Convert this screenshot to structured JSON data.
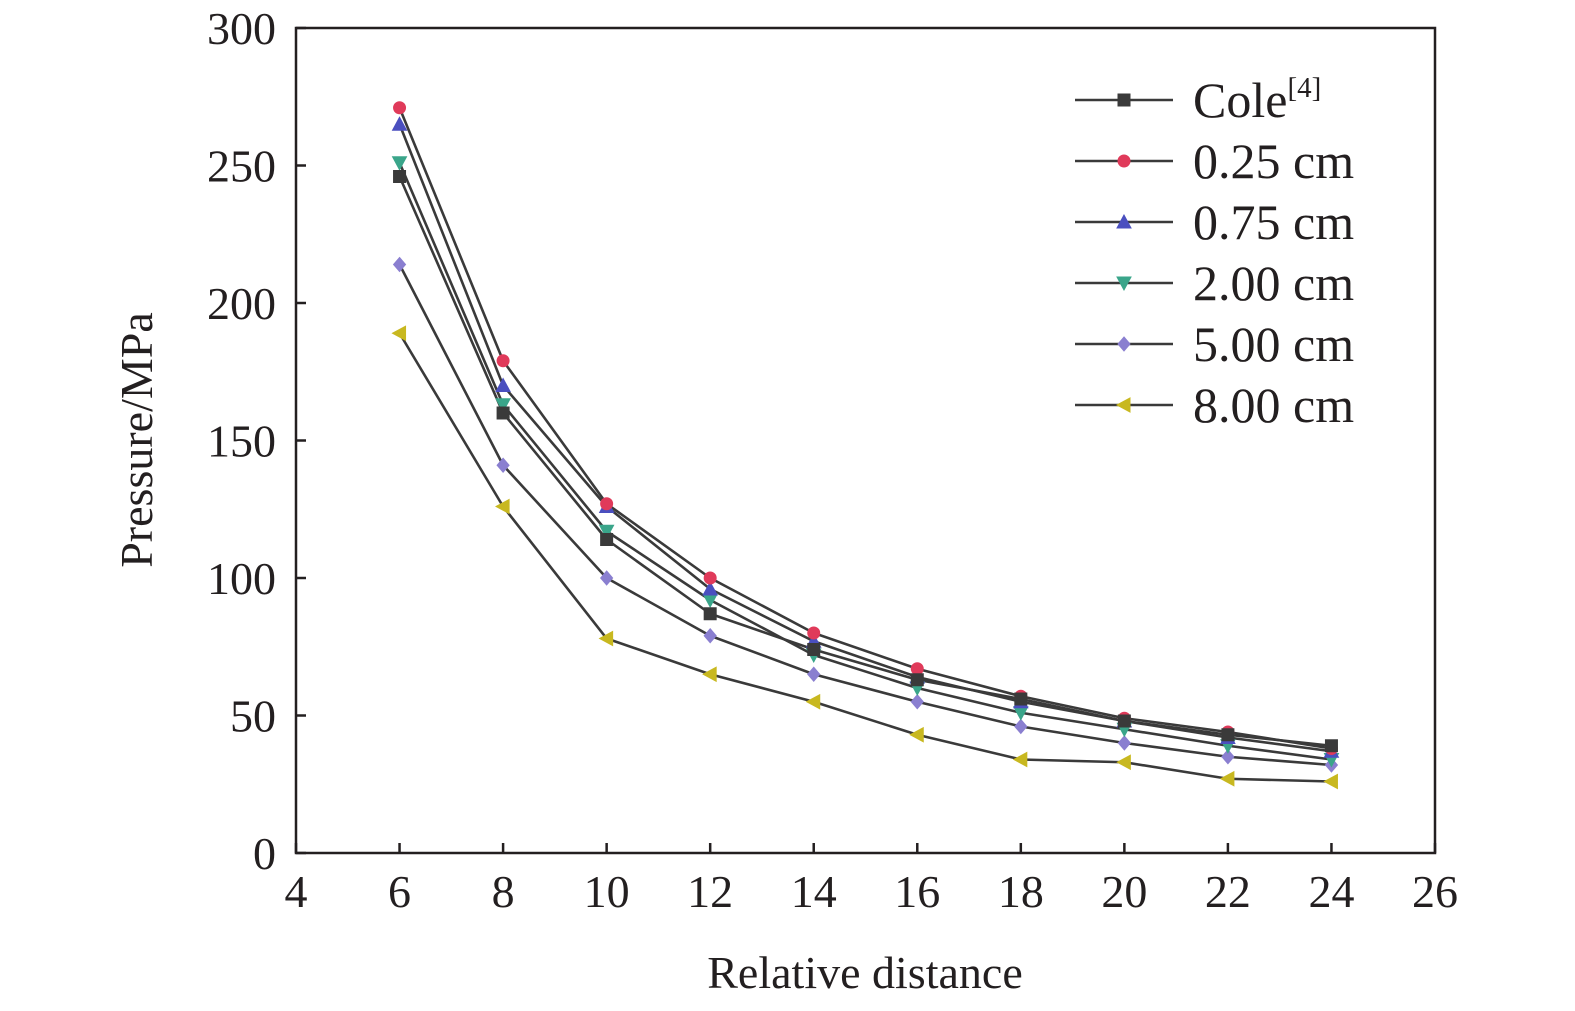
{
  "chart_data": {
    "type": "line",
    "title": "",
    "xlabel": "Relative distance",
    "ylabel": "Pressure/MPa",
    "xlim": [
      4,
      26
    ],
    "ylim": [
      0,
      300
    ],
    "xticks": [
      4,
      6,
      8,
      10,
      12,
      14,
      16,
      18,
      20,
      22,
      24,
      26
    ],
    "yticks": [
      0,
      50,
      100,
      150,
      200,
      250,
      300
    ],
    "grid": false,
    "legend_position": "top-right",
    "x": [
      6,
      8,
      10,
      12,
      14,
      16,
      18,
      20,
      22,
      24
    ],
    "series": [
      {
        "name": "Cole",
        "name_superscript": "[4]",
        "color": "#3a3a3a",
        "marker": "square",
        "values": [
          246,
          160,
          114,
          87,
          74,
          63,
          56,
          48,
          43,
          39
        ]
      },
      {
        "name": "0.25 cm",
        "color": "#e03a5a",
        "marker": "circle",
        "values": [
          271,
          179,
          127,
          100,
          80,
          67,
          57,
          49,
          44,
          38
        ]
      },
      {
        "name": "0.75 cm",
        "color": "#4a4fbf",
        "marker": "triangle-up",
        "values": [
          265,
          170,
          126,
          96,
          77,
          64,
          55,
          48,
          42,
          37
        ]
      },
      {
        "name": "2.00 cm",
        "color": "#3aa58a",
        "marker": "triangle-down",
        "values": [
          251,
          163,
          117,
          92,
          72,
          60,
          51,
          45,
          39,
          34
        ]
      },
      {
        "name": "5.00 cm",
        "color": "#8a7fd0",
        "marker": "diamond",
        "values": [
          214,
          141,
          100,
          79,
          65,
          55,
          46,
          40,
          35,
          32
        ]
      },
      {
        "name": "8.00 cm",
        "color": "#c8b820",
        "marker": "triangle-left",
        "values": [
          189,
          126,
          78,
          65,
          55,
          43,
          34,
          33,
          27,
          26
        ]
      }
    ]
  }
}
